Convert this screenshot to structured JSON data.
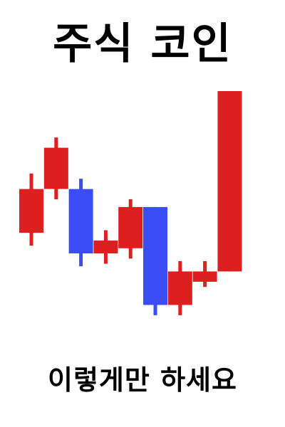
{
  "title": "주식 코인",
  "caption": "이렇게만 하세요",
  "chart_data": {
    "type": "candlestick",
    "colors": {
      "up": "#dd1f1f",
      "down": "#3b4ef5"
    },
    "grid": false,
    "legend": "none",
    "ylim": [
      0,
      100
    ],
    "candles": [
      {
        "open": 45,
        "close": 62,
        "high": 68,
        "low": 40
      },
      {
        "open": 62,
        "close": 78,
        "high": 82,
        "low": 58
      },
      {
        "open": 62,
        "close": 37,
        "high": 66,
        "low": 32
      },
      {
        "open": 37,
        "close": 42,
        "high": 46,
        "low": 33
      },
      {
        "open": 39,
        "close": 55,
        "high": 58,
        "low": 35
      },
      {
        "open": 55,
        "close": 17,
        "high": 55,
        "low": 13
      },
      {
        "open": 17,
        "close": 30,
        "high": 34,
        "low": 13
      },
      {
        "open": 26,
        "close": 30,
        "high": 34,
        "low": 24
      },
      {
        "open": 30,
        "close": 100,
        "high": 100,
        "low": 30
      }
    ]
  }
}
